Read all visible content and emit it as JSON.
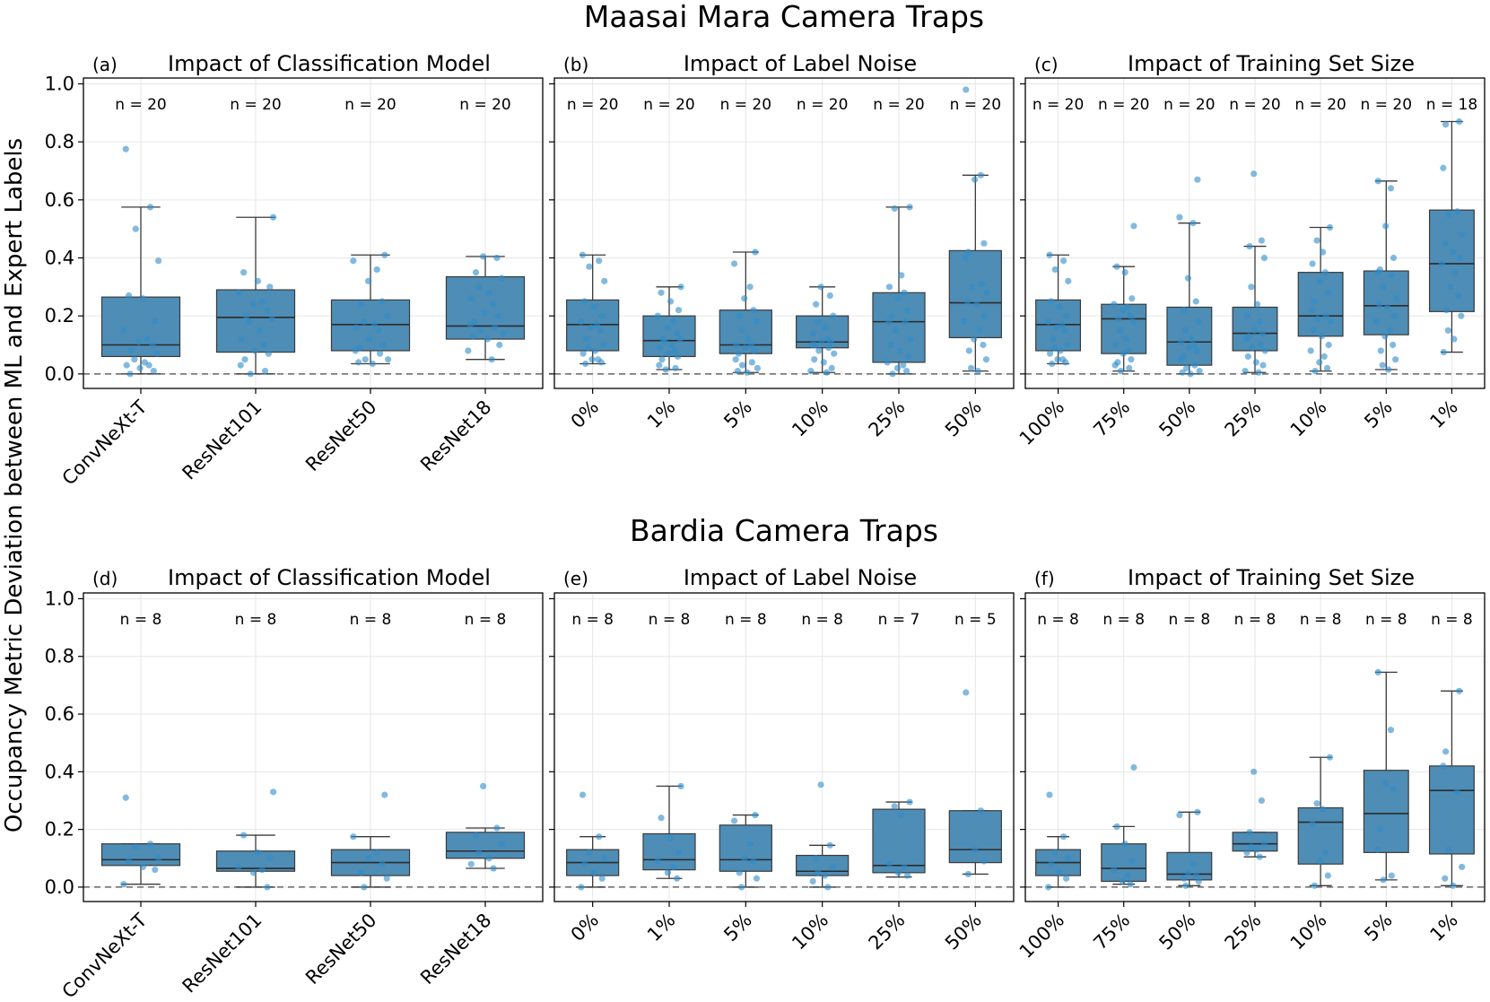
{
  "figure": {
    "ylabel": "Occupancy Metric Deviation between ML and Expert Labels",
    "sections": [
      {
        "title": "Maasai Mara Camera Traps",
        "panels": [
          {
            "label": "(a)",
            "title": "Impact of Classification Model",
            "categories": [
              "ConvNeXt-T",
              "ResNet101",
              "ResNet50",
              "ResNet18"
            ],
            "counts": [
              "n = 20",
              "n = 20",
              "n = 20",
              "n = 20"
            ]
          },
          {
            "label": "(b)",
            "title": "Impact of Label Noise",
            "categories": [
              "0%",
              "1%",
              "5%",
              "10%",
              "25%",
              "50%"
            ],
            "counts": [
              "n = 20",
              "n = 20",
              "n = 20",
              "n = 20",
              "n = 20",
              "n = 20"
            ]
          },
          {
            "label": "(c)",
            "title": "Impact of Training Set Size",
            "categories": [
              "100%",
              "75%",
              "50%",
              "25%",
              "10%",
              "5%",
              "1%"
            ],
            "counts": [
              "n = 20",
              "n = 20",
              "n = 20",
              "n = 20",
              "n = 20",
              "n = 20",
              "n = 18"
            ]
          }
        ]
      },
      {
        "title": "Bardia Camera Traps",
        "panels": [
          {
            "label": "(d)",
            "title": "Impact of Classification Model",
            "categories": [
              "ConvNeXt-T",
              "ResNet101",
              "ResNet50",
              "ResNet18"
            ],
            "counts": [
              "n = 8",
              "n = 8",
              "n = 8",
              "n = 8"
            ]
          },
          {
            "label": "(e)",
            "title": "Impact of Label Noise",
            "categories": [
              "0%",
              "1%",
              "5%",
              "10%",
              "25%",
              "50%"
            ],
            "counts": [
              "n = 8",
              "n = 8",
              "n = 8",
              "n = 8",
              "n = 7",
              "n = 5"
            ]
          },
          {
            "label": "(f)",
            "title": "Impact of Training Set Size",
            "categories": [
              "100%",
              "75%",
              "50%",
              "25%",
              "10%",
              "5%",
              "1%"
            ],
            "counts": [
              "n = 8",
              "n = 8",
              "n = 8",
              "n = 8",
              "n = 8",
              "n = 8",
              "n = 8"
            ]
          }
        ]
      }
    ]
  },
  "chart_data": [
    {
      "type": "box",
      "panel": "(a)",
      "title": "Impact of Classification Model",
      "ylim": [
        -0.05,
        1.02
      ],
      "yticks": [
        "0.0",
        "0.2",
        "0.4",
        "0.6",
        "0.8",
        "1.0"
      ],
      "reference_line": 0.0,
      "categories": [
        "ConvNeXt-T",
        "ResNet101",
        "ResNet50",
        "ResNet18"
      ],
      "boxes": [
        {
          "low": 0.0,
          "q1": 0.06,
          "median": 0.1,
          "q3": 0.265,
          "high": 0.575,
          "points": [
            0.775,
            0.575,
            0.5,
            0.39,
            0.27,
            0.26,
            0.18,
            0.15,
            0.12,
            0.11,
            0.1,
            0.08,
            0.07,
            0.05,
            0.04,
            0.03,
            0.03,
            0.02,
            0.01,
            0.0
          ]
        },
        {
          "low": 0.0,
          "q1": 0.075,
          "median": 0.195,
          "q3": 0.29,
          "high": 0.54,
          "points": [
            0.54,
            0.35,
            0.32,
            0.3,
            0.28,
            0.25,
            0.24,
            0.22,
            0.2,
            0.19,
            0.18,
            0.15,
            0.12,
            0.1,
            0.08,
            0.07,
            0.05,
            0.03,
            0.01,
            0.0
          ]
        },
        {
          "low": 0.035,
          "q1": 0.08,
          "median": 0.17,
          "q3": 0.255,
          "high": 0.41,
          "points": [
            0.41,
            0.39,
            0.36,
            0.32,
            0.25,
            0.24,
            0.2,
            0.18,
            0.17,
            0.16,
            0.15,
            0.12,
            0.1,
            0.09,
            0.08,
            0.07,
            0.05,
            0.05,
            0.04,
            0.035
          ]
        },
        {
          "low": 0.05,
          "q1": 0.12,
          "median": 0.165,
          "q3": 0.335,
          "high": 0.405,
          "points": [
            0.405,
            0.4,
            0.35,
            0.33,
            0.3,
            0.28,
            0.26,
            0.24,
            0.21,
            0.2,
            0.18,
            0.17,
            0.16,
            0.15,
            0.14,
            0.13,
            0.12,
            0.1,
            0.08,
            0.05
          ]
        }
      ]
    },
    {
      "type": "box",
      "panel": "(b)",
      "title": "Impact of Label Noise",
      "ylim": [
        -0.05,
        1.02
      ],
      "yticks": [
        "0.0",
        "0.2",
        "0.4",
        "0.6",
        "0.8",
        "1.0"
      ],
      "reference_line": 0.0,
      "categories": [
        "0%",
        "1%",
        "5%",
        "10%",
        "25%",
        "50%"
      ],
      "boxes": [
        {
          "low": 0.035,
          "q1": 0.08,
          "median": 0.17,
          "q3": 0.255,
          "high": 0.41,
          "points": [
            0.41,
            0.39,
            0.37,
            0.32,
            0.25,
            0.23,
            0.2,
            0.18,
            0.17,
            0.16,
            0.15,
            0.12,
            0.1,
            0.09,
            0.08,
            0.07,
            0.05,
            0.05,
            0.04,
            0.035
          ]
        },
        {
          "low": 0.015,
          "q1": 0.06,
          "median": 0.115,
          "q3": 0.2,
          "high": 0.3,
          "points": [
            0.3,
            0.28,
            0.25,
            0.22,
            0.2,
            0.18,
            0.16,
            0.14,
            0.12,
            0.12,
            0.11,
            0.1,
            0.09,
            0.08,
            0.07,
            0.06,
            0.05,
            0.03,
            0.02,
            0.015
          ]
        },
        {
          "low": 0.005,
          "q1": 0.07,
          "median": 0.1,
          "q3": 0.22,
          "high": 0.42,
          "points": [
            0.42,
            0.38,
            0.3,
            0.26,
            0.22,
            0.2,
            0.18,
            0.15,
            0.12,
            0.1,
            0.1,
            0.09,
            0.08,
            0.07,
            0.05,
            0.04,
            0.03,
            0.02,
            0.01,
            0.005
          ]
        },
        {
          "low": 0.005,
          "q1": 0.09,
          "median": 0.11,
          "q3": 0.2,
          "high": 0.3,
          "points": [
            0.3,
            0.27,
            0.24,
            0.2,
            0.18,
            0.16,
            0.14,
            0.12,
            0.11,
            0.11,
            0.1,
            0.1,
            0.09,
            0.08,
            0.07,
            0.05,
            0.04,
            0.02,
            0.01,
            0.005
          ]
        },
        {
          "low": 0.0,
          "q1": 0.04,
          "median": 0.18,
          "q3": 0.28,
          "high": 0.575,
          "points": [
            0.575,
            0.57,
            0.34,
            0.3,
            0.28,
            0.26,
            0.22,
            0.2,
            0.18,
            0.18,
            0.15,
            0.12,
            0.1,
            0.08,
            0.06,
            0.04,
            0.03,
            0.02,
            0.01,
            0.0
          ]
        },
        {
          "low": 0.01,
          "q1": 0.125,
          "median": 0.245,
          "q3": 0.425,
          "high": 0.685,
          "points": [
            0.98,
            0.685,
            0.67,
            0.45,
            0.42,
            0.4,
            0.31,
            0.3,
            0.28,
            0.25,
            0.24,
            0.2,
            0.18,
            0.15,
            0.12,
            0.1,
            0.08,
            0.05,
            0.02,
            0.01
          ]
        }
      ]
    },
    {
      "type": "box",
      "panel": "(c)",
      "title": "Impact of Training Set Size",
      "ylim": [
        -0.05,
        1.02
      ],
      "yticks": [
        "0.0",
        "0.2",
        "0.4",
        "0.6",
        "0.8",
        "1.0"
      ],
      "reference_line": 0.0,
      "categories": [
        "100%",
        "75%",
        "50%",
        "25%",
        "10%",
        "5%",
        "1%"
      ],
      "boxes": [
        {
          "low": 0.035,
          "q1": 0.08,
          "median": 0.17,
          "q3": 0.255,
          "high": 0.41,
          "points": [
            0.41,
            0.39,
            0.36,
            0.32,
            0.25,
            0.23,
            0.2,
            0.18,
            0.17,
            0.16,
            0.15,
            0.12,
            0.1,
            0.09,
            0.08,
            0.07,
            0.05,
            0.05,
            0.04,
            0.035
          ]
        },
        {
          "low": 0.01,
          "q1": 0.07,
          "median": 0.19,
          "q3": 0.24,
          "high": 0.37,
          "points": [
            0.51,
            0.37,
            0.35,
            0.26,
            0.24,
            0.23,
            0.22,
            0.2,
            0.19,
            0.18,
            0.15,
            0.12,
            0.1,
            0.08,
            0.07,
            0.05,
            0.04,
            0.03,
            0.02,
            0.01
          ]
        },
        {
          "low": 0.0,
          "q1": 0.03,
          "median": 0.11,
          "q3": 0.23,
          "high": 0.52,
          "points": [
            0.67,
            0.54,
            0.52,
            0.33,
            0.25,
            0.22,
            0.18,
            0.15,
            0.12,
            0.11,
            0.1,
            0.09,
            0.08,
            0.06,
            0.05,
            0.03,
            0.02,
            0.01,
            0.005,
            0.0
          ]
        },
        {
          "low": 0.005,
          "q1": 0.08,
          "median": 0.14,
          "q3": 0.23,
          "high": 0.44,
          "points": [
            0.69,
            0.46,
            0.44,
            0.4,
            0.3,
            0.24,
            0.2,
            0.18,
            0.15,
            0.14,
            0.13,
            0.12,
            0.1,
            0.09,
            0.08,
            0.06,
            0.04,
            0.03,
            0.01,
            0.005
          ]
        },
        {
          "low": 0.01,
          "q1": 0.13,
          "median": 0.2,
          "q3": 0.35,
          "high": 0.505,
          "points": [
            0.505,
            0.46,
            0.42,
            0.38,
            0.35,
            0.32,
            0.28,
            0.25,
            0.22,
            0.2,
            0.19,
            0.18,
            0.15,
            0.13,
            0.1,
            0.08,
            0.06,
            0.04,
            0.02,
            0.01
          ]
        },
        {
          "low": 0.015,
          "q1": 0.135,
          "median": 0.235,
          "q3": 0.355,
          "high": 0.665,
          "points": [
            0.665,
            0.64,
            0.51,
            0.4,
            0.36,
            0.35,
            0.34,
            0.3,
            0.26,
            0.24,
            0.23,
            0.2,
            0.18,
            0.15,
            0.13,
            0.1,
            0.08,
            0.05,
            0.03,
            0.015
          ]
        },
        {
          "low": 0.075,
          "q1": 0.215,
          "median": 0.38,
          "q3": 0.565,
          "high": 0.87,
          "points": [
            0.87,
            0.86,
            0.71,
            0.56,
            0.55,
            0.48,
            0.45,
            0.42,
            0.4,
            0.38,
            0.35,
            0.3,
            0.27,
            0.22,
            0.2,
            0.15,
            0.12,
            0.075
          ]
        }
      ]
    },
    {
      "type": "box",
      "panel": "(d)",
      "title": "Impact of Classification Model",
      "ylim": [
        -0.05,
        1.02
      ],
      "yticks": [
        "0.0",
        "0.2",
        "0.4",
        "0.6",
        "0.8",
        "1.0"
      ],
      "reference_line": 0.0,
      "categories": [
        "ConvNeXt-T",
        "ResNet101",
        "ResNet50",
        "ResNet18"
      ],
      "boxes": [
        {
          "low": 0.01,
          "q1": 0.075,
          "median": 0.095,
          "q3": 0.15,
          "high": 0.15,
          "points": [
            0.31,
            0.15,
            0.14,
            0.1,
            0.09,
            0.07,
            0.06,
            0.01
          ]
        },
        {
          "low": 0.0,
          "q1": 0.055,
          "median": 0.065,
          "q3": 0.125,
          "high": 0.18,
          "points": [
            0.33,
            0.18,
            0.12,
            0.1,
            0.07,
            0.06,
            0.05,
            0.0
          ]
        },
        {
          "low": 0.0,
          "q1": 0.04,
          "median": 0.085,
          "q3": 0.13,
          "high": 0.175,
          "points": [
            0.32,
            0.175,
            0.12,
            0.1,
            0.08,
            0.05,
            0.03,
            0.0
          ]
        },
        {
          "low": 0.065,
          "q1": 0.1,
          "median": 0.125,
          "q3": 0.19,
          "high": 0.205,
          "points": [
            0.35,
            0.205,
            0.18,
            0.15,
            0.12,
            0.1,
            0.08,
            0.065
          ]
        }
      ]
    },
    {
      "type": "box",
      "panel": "(e)",
      "title": "Impact of Label Noise",
      "ylim": [
        -0.05,
        1.02
      ],
      "yticks": [
        "0.0",
        "0.2",
        "0.4",
        "0.6",
        "0.8",
        "1.0"
      ],
      "reference_line": 0.0,
      "categories": [
        "0%",
        "1%",
        "5%",
        "10%",
        "25%",
        "50%"
      ],
      "boxes": [
        {
          "low": 0.0,
          "q1": 0.04,
          "median": 0.085,
          "q3": 0.13,
          "high": 0.175,
          "points": [
            0.32,
            0.175,
            0.12,
            0.1,
            0.08,
            0.05,
            0.03,
            0.0
          ]
        },
        {
          "low": 0.03,
          "q1": 0.06,
          "median": 0.095,
          "q3": 0.185,
          "high": 0.35,
          "points": [
            0.35,
            0.24,
            0.17,
            0.12,
            0.09,
            0.07,
            0.05,
            0.03
          ]
        },
        {
          "low": 0.0,
          "q1": 0.055,
          "median": 0.095,
          "q3": 0.215,
          "high": 0.25,
          "points": [
            0.25,
            0.23,
            0.15,
            0.1,
            0.09,
            0.05,
            0.03,
            0.0
          ]
        },
        {
          "low": 0.0,
          "q1": 0.04,
          "median": 0.055,
          "q3": 0.11,
          "high": 0.145,
          "points": [
            0.355,
            0.145,
            0.1,
            0.07,
            0.05,
            0.04,
            0.02,
            0.0
          ]
        },
        {
          "low": 0.035,
          "q1": 0.05,
          "median": 0.075,
          "q3": 0.27,
          "high": 0.295,
          "points": [
            0.295,
            0.28,
            0.25,
            0.08,
            0.07,
            0.05,
            0.04
          ]
        },
        {
          "low": 0.045,
          "q1": 0.085,
          "median": 0.13,
          "q3": 0.265,
          "high": 0.265,
          "points": [
            0.675,
            0.265,
            0.13,
            0.09,
            0.045
          ]
        }
      ]
    },
    {
      "type": "box",
      "panel": "(f)",
      "title": "Impact of Training Set Size",
      "ylim": [
        -0.05,
        1.02
      ],
      "yticks": [
        "0.0",
        "0.2",
        "0.4",
        "0.6",
        "0.8",
        "1.0"
      ],
      "reference_line": 0.0,
      "categories": [
        "100%",
        "75%",
        "50%",
        "25%",
        "10%",
        "5%",
        "1%"
      ],
      "boxes": [
        {
          "low": 0.0,
          "q1": 0.04,
          "median": 0.085,
          "q3": 0.13,
          "high": 0.175,
          "points": [
            0.32,
            0.175,
            0.12,
            0.1,
            0.08,
            0.05,
            0.03,
            0.0
          ]
        },
        {
          "low": 0.01,
          "q1": 0.02,
          "median": 0.065,
          "q3": 0.15,
          "high": 0.21,
          "points": [
            0.415,
            0.21,
            0.15,
            0.09,
            0.06,
            0.04,
            0.02,
            0.01
          ]
        },
        {
          "low": 0.005,
          "q1": 0.025,
          "median": 0.045,
          "q3": 0.12,
          "high": 0.26,
          "points": [
            0.26,
            0.25,
            0.08,
            0.05,
            0.04,
            0.03,
            0.02,
            0.005
          ]
        },
        {
          "low": 0.105,
          "q1": 0.125,
          "median": 0.15,
          "q3": 0.19,
          "high": 0.19,
          "points": [
            0.4,
            0.3,
            0.19,
            0.15,
            0.14,
            0.13,
            0.12,
            0.105
          ]
        },
        {
          "low": 0.005,
          "q1": 0.08,
          "median": 0.225,
          "q3": 0.275,
          "high": 0.45,
          "points": [
            0.45,
            0.29,
            0.27,
            0.22,
            0.12,
            0.09,
            0.04,
            0.005
          ]
        },
        {
          "low": 0.025,
          "q1": 0.12,
          "median": 0.255,
          "q3": 0.405,
          "high": 0.745,
          "points": [
            0.745,
            0.545,
            0.36,
            0.34,
            0.2,
            0.13,
            0.04,
            0.025
          ]
        },
        {
          "low": 0.005,
          "q1": 0.115,
          "median": 0.335,
          "q3": 0.42,
          "high": 0.68,
          "points": [
            0.68,
            0.47,
            0.42,
            0.33,
            0.13,
            0.07,
            0.03,
            0.005
          ]
        }
      ]
    }
  ]
}
